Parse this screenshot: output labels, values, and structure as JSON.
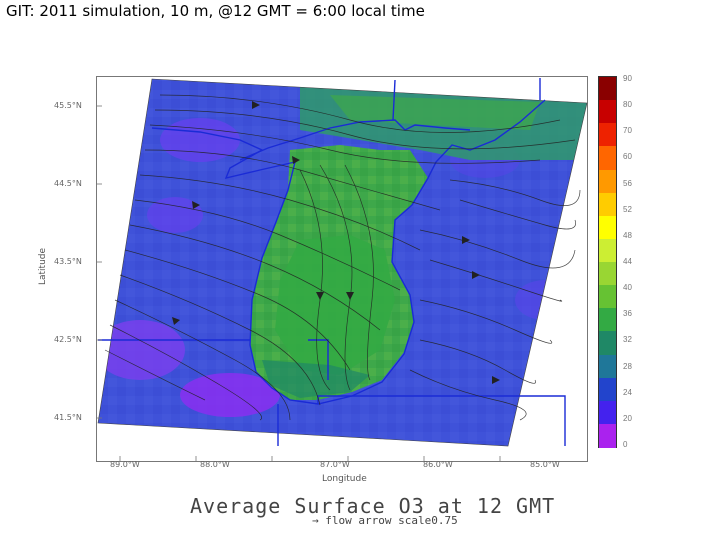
{
  "slide_title": "GIT: 2011 simulation, 10 m, @12 GMT = 6:00 local time",
  "map": {
    "title": "Average Surface O3 at 12 GMT",
    "subtitle": "→ flow arrow scale0.75",
    "xlabel": "Longitude",
    "ylabel": "Latitude",
    "x_ticks": [
      "89.0°W",
      "88.0°W",
      "87.0°W",
      "86.0°W",
      "85.0°W"
    ],
    "y_ticks": [
      "45.5°N",
      "44.5°N",
      "43.5°N",
      "42.5°N",
      "41.5°N"
    ],
    "colorbar": {
      "labels": [
        "90",
        "80",
        "70",
        "60",
        "56",
        "52",
        "48",
        "44",
        "40",
        "36",
        "32",
        "28",
        "24",
        "20",
        "0"
      ],
      "colors": [
        "#8a0000",
        "#c80000",
        "#ee2200",
        "#ff6600",
        "#ff9900",
        "#ffcc00",
        "#ffff00",
        "#ccee33",
        "#99d633",
        "#66c233",
        "#33aa44",
        "#1f8866",
        "#1f7799",
        "#2244cc",
        "#4422ee",
        "#aa22ee"
      ]
    },
    "colors": {
      "lake_green": "#3ea84a",
      "land_blue": "#3f52d9",
      "purple": "#7a3df0",
      "shoreline": "#1a2bd6",
      "streamline": "#222222"
    }
  }
}
